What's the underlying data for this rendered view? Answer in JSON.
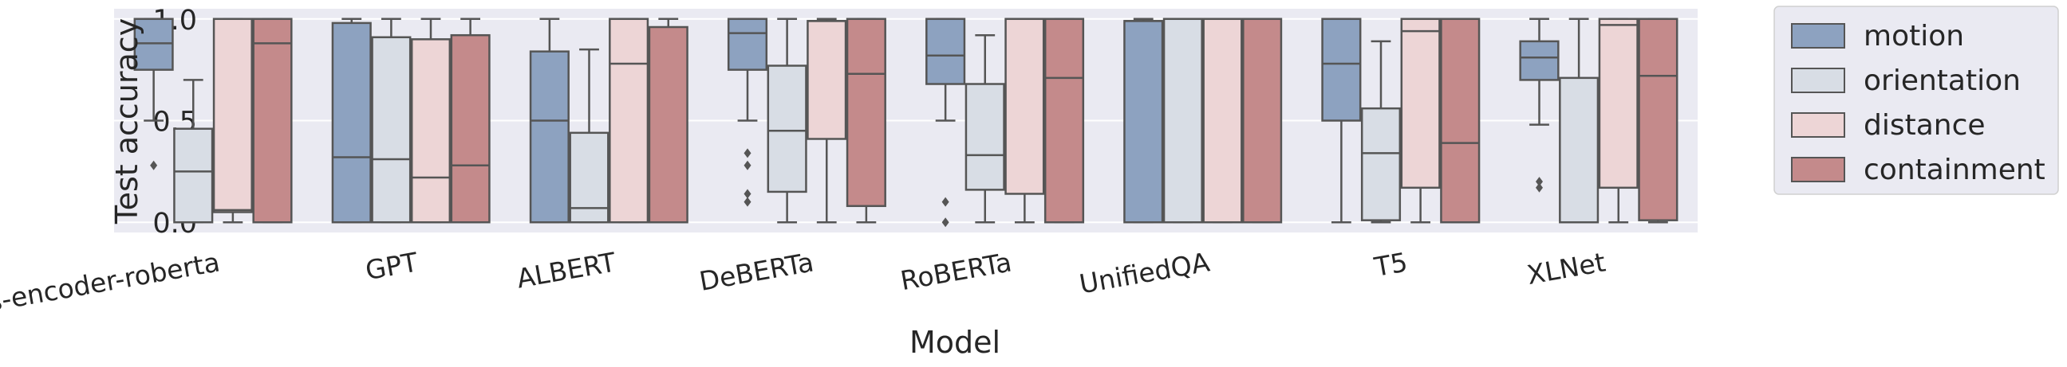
{
  "chart_data": {
    "type": "box",
    "xlabel": "Model",
    "ylabel": "Test accuracy",
    "ylim": [
      -0.05,
      1.05
    ],
    "yticks": [
      0.0,
      0.5,
      1.0
    ],
    "ytick_labels": [
      "0.0",
      "0.5",
      "1.0"
    ],
    "grid": true,
    "legend_position": "outside-right-top",
    "categories": [
      "cross-encoder-roberta",
      "GPT",
      "ALBERT",
      "DeBERTa",
      "RoBERTa",
      "UnifiedQA",
      "T5",
      "XLNet"
    ],
    "series": [
      {
        "name": "motion",
        "color": "#8da2c0",
        "boxes": [
          {
            "whislo": 0.5,
            "q1": 0.75,
            "med": 0.88,
            "q3": 1.0,
            "whishi": 1.0,
            "fliers": [
              0.28
            ]
          },
          {
            "whislo": 0.0,
            "q1": 0.0,
            "med": 0.32,
            "q3": 0.98,
            "whishi": 1.0,
            "fliers": []
          },
          {
            "whislo": 0.0,
            "q1": 0.0,
            "med": 0.5,
            "q3": 0.84,
            "whishi": 1.0,
            "fliers": []
          },
          {
            "whislo": 0.5,
            "q1": 0.75,
            "med": 0.93,
            "q3": 1.0,
            "whishi": 1.0,
            "fliers": [
              0.1,
              0.14,
              0.28,
              0.34
            ]
          },
          {
            "whislo": 0.5,
            "q1": 0.68,
            "med": 0.82,
            "q3": 1.0,
            "whishi": 1.0,
            "fliers": [
              0.0,
              0.1
            ]
          },
          {
            "whislo": 0.0,
            "q1": 0.0,
            "med": 0.99,
            "q3": 0.99,
            "whishi": 1.0,
            "fliers": []
          },
          {
            "whislo": 0.0,
            "q1": 0.5,
            "med": 0.78,
            "q3": 1.0,
            "whishi": 1.0,
            "fliers": []
          },
          {
            "whislo": 0.48,
            "q1": 0.7,
            "med": 0.81,
            "q3": 0.89,
            "whishi": 1.0,
            "fliers": [
              0.17,
              0.2
            ]
          }
        ]
      },
      {
        "name": "orientation",
        "color": "#d8dde5",
        "boxes": [
          {
            "whislo": 0.0,
            "q1": 0.0,
            "med": 0.25,
            "q3": 0.46,
            "whishi": 0.7,
            "fliers": []
          },
          {
            "whislo": 0.0,
            "q1": 0.0,
            "med": 0.31,
            "q3": 0.91,
            "whishi": 1.0,
            "fliers": []
          },
          {
            "whislo": 0.0,
            "q1": 0.0,
            "med": 0.07,
            "q3": 0.44,
            "whishi": 0.85,
            "fliers": []
          },
          {
            "whislo": 0.0,
            "q1": 0.15,
            "med": 0.45,
            "q3": 0.77,
            "whishi": 1.0,
            "fliers": []
          },
          {
            "whislo": 0.0,
            "q1": 0.16,
            "med": 0.33,
            "q3": 0.68,
            "whishi": 0.92,
            "fliers": []
          },
          {
            "whislo": 0.0,
            "q1": 0.0,
            "med": 1.0,
            "q3": 1.0,
            "whishi": 1.0,
            "fliers": []
          },
          {
            "whislo": 0.0,
            "q1": 0.01,
            "med": 0.34,
            "q3": 0.56,
            "whishi": 0.89,
            "fliers": []
          },
          {
            "whislo": 0.0,
            "q1": 0.0,
            "med": 0.0,
            "q3": 0.71,
            "whishi": 1.0,
            "fliers": []
          }
        ]
      },
      {
        "name": "distance",
        "color": "#edd5d6",
        "boxes": [
          {
            "whislo": 0.0,
            "q1": 0.05,
            "med": 0.06,
            "q3": 1.0,
            "whishi": 1.0,
            "fliers": []
          },
          {
            "whislo": 0.0,
            "q1": 0.0,
            "med": 0.22,
            "q3": 0.9,
            "whishi": 1.0,
            "fliers": []
          },
          {
            "whislo": 0.0,
            "q1": 0.0,
            "med": 0.78,
            "q3": 1.0,
            "whishi": 1.0,
            "fliers": []
          },
          {
            "whislo": 0.0,
            "q1": 0.41,
            "med": 0.99,
            "q3": 0.99,
            "whishi": 1.0,
            "fliers": []
          },
          {
            "whislo": 0.0,
            "q1": 0.14,
            "med": 1.0,
            "q3": 1.0,
            "whishi": 1.0,
            "fliers": []
          },
          {
            "whislo": 0.0,
            "q1": 0.0,
            "med": 1.0,
            "q3": 1.0,
            "whishi": 1.0,
            "fliers": []
          },
          {
            "whislo": 0.0,
            "q1": 0.17,
            "med": 0.94,
            "q3": 1.0,
            "whishi": 1.0,
            "fliers": []
          },
          {
            "whislo": 0.0,
            "q1": 0.17,
            "med": 0.97,
            "q3": 1.0,
            "whishi": 1.0,
            "fliers": []
          }
        ]
      },
      {
        "name": "containment",
        "color": "#c48a8b",
        "boxes": [
          {
            "whislo": 0.0,
            "q1": 0.0,
            "med": 0.88,
            "q3": 1.0,
            "whishi": 1.0,
            "fliers": []
          },
          {
            "whislo": 0.0,
            "q1": 0.0,
            "med": 0.28,
            "q3": 0.92,
            "whishi": 1.0,
            "fliers": []
          },
          {
            "whislo": 0.0,
            "q1": 0.0,
            "med": 0.0,
            "q3": 0.96,
            "whishi": 1.0,
            "fliers": []
          },
          {
            "whislo": 0.0,
            "q1": 0.08,
            "med": 0.73,
            "q3": 1.0,
            "whishi": 1.0,
            "fliers": []
          },
          {
            "whislo": 0.0,
            "q1": 0.0,
            "med": 0.71,
            "q3": 1.0,
            "whishi": 1.0,
            "fliers": []
          },
          {
            "whislo": 0.0,
            "q1": 0.0,
            "med": 1.0,
            "q3": 1.0,
            "whishi": 1.0,
            "fliers": []
          },
          {
            "whislo": 0.0,
            "q1": 0.0,
            "med": 0.39,
            "q3": 1.0,
            "whishi": 1.0,
            "fliers": []
          },
          {
            "whislo": 0.0,
            "q1": 0.01,
            "med": 0.72,
            "q3": 1.0,
            "whishi": 1.0,
            "fliers": []
          }
        ]
      }
    ]
  }
}
